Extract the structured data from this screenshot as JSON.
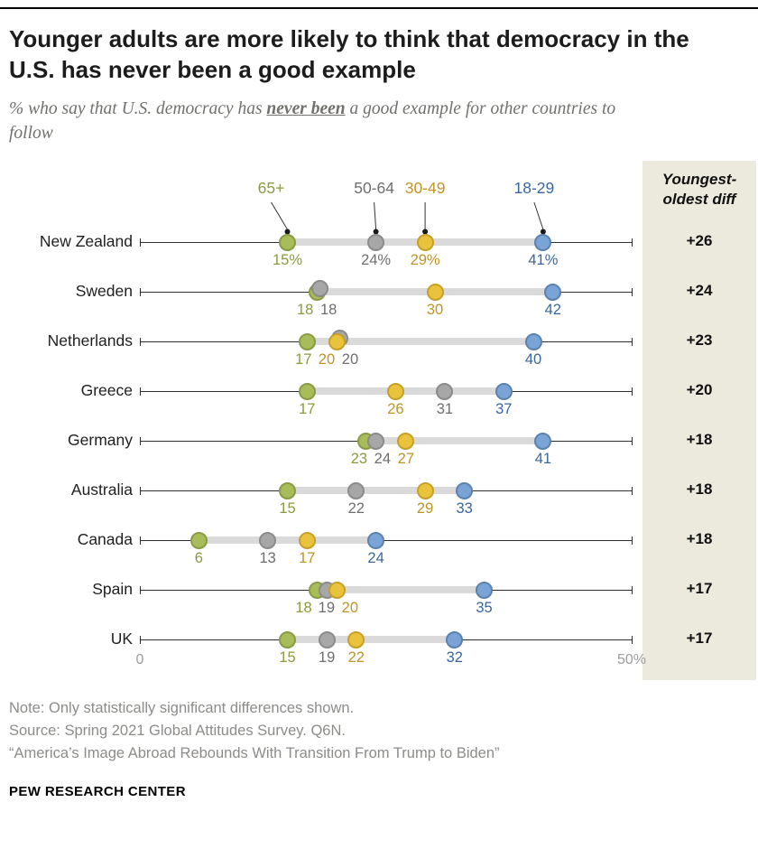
{
  "header": {
    "title": "Younger adults are more likely to think that democracy in the U.S. has never been a good example",
    "subtitle_pre": "% who say that U.S. democracy has ",
    "subtitle_emphasis": "never been",
    "subtitle_post": " a good example for other countries to follow"
  },
  "chart_data": {
    "type": "dot-plot",
    "x_axis": {
      "min": 0,
      "max": 50,
      "min_label": "0",
      "max_label": "50%"
    },
    "diff_header": "Youngest-oldest diff",
    "groups": [
      {
        "id": "65plus",
        "label": "65+",
        "fill": "#a8bc5a",
        "stroke": "#8a9b45",
        "label_color": "#8b9a3d"
      },
      {
        "id": "50-64",
        "label": "50-64",
        "fill": "#a7a7a7",
        "stroke": "#8b8b8b",
        "label_color": "#6e6e6e"
      },
      {
        "id": "30-49",
        "label": "30-49",
        "fill": "#eac33d",
        "stroke": "#c7a02b",
        "label_color": "#bd9425"
      },
      {
        "id": "18-29",
        "label": "18-29",
        "fill": "#7ba4d6",
        "stroke": "#5a82ae",
        "label_color": "#39679d"
      }
    ],
    "rows": [
      {
        "country": "New Zealand",
        "values": [
          15,
          24,
          29,
          41
        ],
        "diff": "+26",
        "suffix": "%"
      },
      {
        "country": "Sweden",
        "values": [
          18,
          18,
          30,
          42
        ],
        "diff": "+24"
      },
      {
        "country": "Netherlands",
        "values": [
          17,
          20,
          20,
          40
        ],
        "diff": "+23"
      },
      {
        "country": "Greece",
        "values": [
          17,
          31,
          26,
          37
        ],
        "diff": "+20"
      },
      {
        "country": "Germany",
        "values": [
          23,
          24,
          27,
          41
        ],
        "diff": "+18"
      },
      {
        "country": "Australia",
        "values": [
          15,
          22,
          29,
          33
        ],
        "diff": "+18"
      },
      {
        "country": "Canada",
        "values": [
          6,
          13,
          17,
          24
        ],
        "diff": "+18"
      },
      {
        "country": "Spain",
        "values": [
          18,
          19,
          20,
          35
        ],
        "diff": "+17"
      },
      {
        "country": "UK",
        "values": [
          15,
          19,
          22,
          32
        ],
        "diff": "+17"
      }
    ]
  },
  "notes": {
    "line1": "Note: Only statistically significant differences shown.",
    "line2": "Source: Spring 2021 Global Attitudes Survey. Q6N.",
    "line3": "“America’s Image Abroad Rebounds With Transition From Trump to Biden”"
  },
  "footer": "PEW RESEARCH CENTER"
}
